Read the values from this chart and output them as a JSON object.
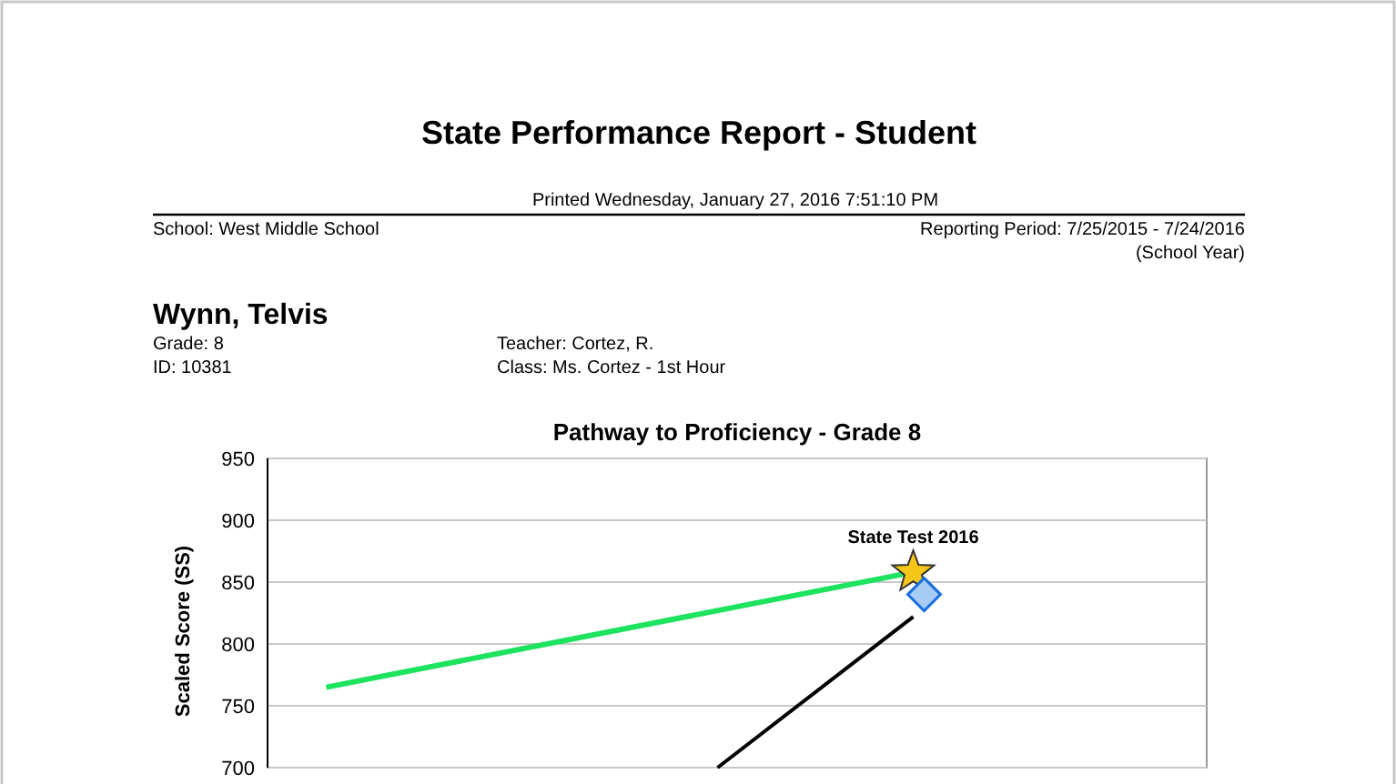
{
  "chart_data": {
    "type": "line",
    "title": "State Performance Report - Student",
    "subtitle": "Printed Wednesday, January 27, 2016  7:51:10 PM",
    "ylabel": "Scaled Score (SS)",
    "annotations": [
      "School: West Middle School",
      "Reporting Period: 7/25/2015 - 7/24/2016",
      "(School Year)",
      "Wynn, Telvis",
      "Grade: 8",
      "ID: 10381",
      "Teacher: Cortez, R.",
      "Class: Ms. Cortez - 1st Hour",
      "Pathway to Proficiency - Grade 8",
      {
        "text": "State Test 2016",
        "y": 858
      }
    ],
    "categories": [
      null,
      null,
      null,
      null,
      null,
      null,
      null,
      null,
      null,
      null,
      null,
      null,
      null,
      null,
      null,
      null,
      null,
      null,
      null,
      null,
      null,
      null,
      null,
      null
    ],
    "series": [
      {
        "type": "line",
        "color": "#1ee35f",
        "values": [
          null,
          765,
          null,
          null,
          null,
          null,
          null,
          null,
          null,
          null,
          null,
          null,
          null,
          null,
          null,
          null,
          858,
          null,
          null,
          null,
          null,
          null,
          null,
          null
        ]
      },
      {
        "type": "line",
        "color": "#000000",
        "values": [
          null,
          null,
          null,
          null,
          null,
          null,
          null,
          null,
          null,
          null,
          null,
          700,
          null,
          null,
          null,
          null,
          822,
          null,
          null,
          null,
          null,
          null,
          null,
          null
        ]
      },
      {
        "type": "scatter",
        "marker": "star",
        "color": "#f5c518",
        "values": [
          null,
          null,
          null,
          null,
          null,
          null,
          null,
          null,
          null,
          null,
          null,
          null,
          null,
          null,
          null,
          null,
          858,
          null,
          null,
          null,
          null,
          null,
          null,
          null
        ]
      },
      {
        "type": "scatter",
        "marker": "diamond",
        "color": "#a8cdf5",
        "values": [
          null,
          null,
          null,
          null,
          null,
          null,
          null,
          null,
          null,
          null,
          null,
          null,
          null,
          null,
          null,
          null,
          840,
          null,
          null,
          null,
          null,
          null,
          null,
          null
        ]
      }
    ],
    "ylim": [
      700,
      950
    ],
    "yticks": [
      700,
      750,
      800,
      850,
      900,
      950
    ],
    "grid": "y",
    "tick_labels": "y"
  }
}
